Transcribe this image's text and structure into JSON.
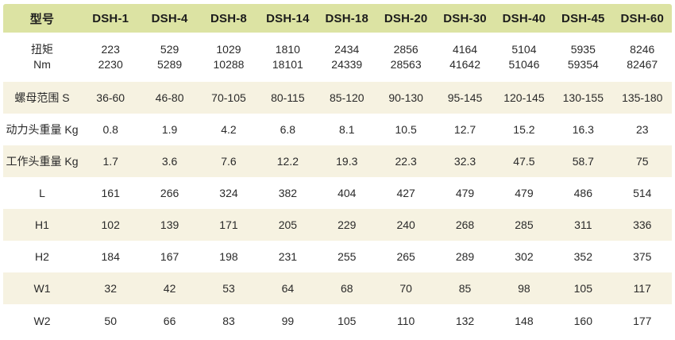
{
  "colors": {
    "page_bg": "#ffffff",
    "header_bg": "#dce3a3",
    "stripe_bg": "#f6f2e1",
    "row_bg": "#ffffff",
    "header_text": "#1c1c1c",
    "cell_text": "#2a2a2a"
  },
  "chart_data": {
    "type": "table",
    "title": "",
    "columns": [
      "型号",
      "DSH-1",
      "DSH-4",
      "DSH-8",
      "DSH-14",
      "DSH-18",
      "DSH-20",
      "DSH-30",
      "DSH-40",
      "DSH-45",
      "DSH-60"
    ],
    "rows": [
      {
        "label_lines": [
          "扭矩",
          "Nm"
        ],
        "values": [
          [
            "223",
            "2230"
          ],
          [
            "529",
            "5289"
          ],
          [
            "1029",
            "10288"
          ],
          [
            "1810",
            "18101"
          ],
          [
            "2434",
            "24339"
          ],
          [
            "2856",
            "28563"
          ],
          [
            "4164",
            "41642"
          ],
          [
            "5104",
            "51046"
          ],
          [
            "5935",
            "59354"
          ],
          [
            "8246",
            "82467"
          ]
        ]
      },
      {
        "label_lines": [
          "螺母范围 S"
        ],
        "values": [
          "36-60",
          "46-80",
          "70-105",
          "80-115",
          "85-120",
          "90-130",
          "95-145",
          "120-145",
          "130-155",
          "135-180"
        ]
      },
      {
        "label_lines": [
          "动力头重量 Kg"
        ],
        "values": [
          "0.8",
          "1.9",
          "4.2",
          "6.8",
          "8.1",
          "10.5",
          "12.7",
          "15.2",
          "16.3",
          "23"
        ]
      },
      {
        "label_lines": [
          "工作头重量 Kg"
        ],
        "values": [
          "1.7",
          "3.6",
          "7.6",
          "12.2",
          "19.3",
          "22.3",
          "32.3",
          "47.5",
          "58.7",
          "75"
        ]
      },
      {
        "label_lines": [
          "L"
        ],
        "values": [
          "161",
          "266",
          "324",
          "382",
          "404",
          "427",
          "479",
          "479",
          "486",
          "514"
        ]
      },
      {
        "label_lines": [
          "H1"
        ],
        "values": [
          "102",
          "139",
          "171",
          "205",
          "229",
          "240",
          "268",
          "285",
          "311",
          "336"
        ]
      },
      {
        "label_lines": [
          "H2"
        ],
        "values": [
          "184",
          "167",
          "198",
          "231",
          "255",
          "265",
          "289",
          "302",
          "352",
          "375"
        ]
      },
      {
        "label_lines": [
          "W1"
        ],
        "values": [
          "32",
          "42",
          "53",
          "64",
          "68",
          "70",
          "85",
          "98",
          "105",
          "117"
        ]
      },
      {
        "label_lines": [
          "W2"
        ],
        "values": [
          "50",
          "66",
          "83",
          "99",
          "105",
          "110",
          "132",
          "148",
          "160",
          "177"
        ]
      }
    ]
  }
}
